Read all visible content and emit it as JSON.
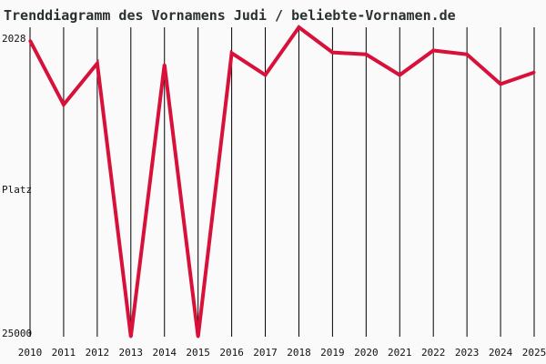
{
  "chart_data": {
    "type": "line",
    "title": "Trenddiagramm des Vornamens Judi / beliebte-Vornamen.de",
    "ylabel": "Platz",
    "y_ticks": [
      "2028",
      "25000"
    ],
    "x": [
      "2010",
      "2011",
      "2012",
      "2013",
      "2014",
      "2015",
      "2016",
      "2017",
      "2018",
      "2019",
      "2020",
      "2021",
      "2022",
      "2023",
      "2024",
      "2025"
    ],
    "series": [
      {
        "color": "#d8113a",
        "values": [
          2028,
          7000,
          3800,
          25000,
          3900,
          25000,
          3000,
          4700,
          1000,
          2950,
          3100,
          4700,
          2800,
          3100,
          5400,
          4500
        ]
      }
    ],
    "ylim": [
      1000,
      25000
    ],
    "y_inverted": true,
    "grid": "vertical"
  }
}
